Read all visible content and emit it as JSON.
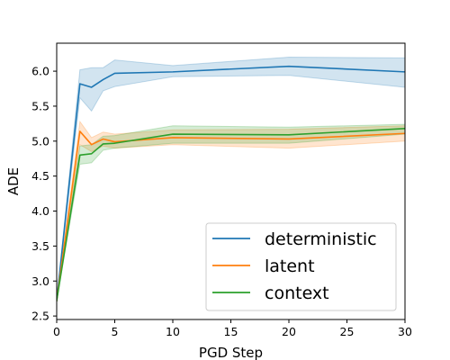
{
  "chart_data": {
    "type": "line",
    "title": "",
    "xlabel": "PGD Step",
    "ylabel": "ADE",
    "xlim": [
      0,
      30
    ],
    "ylim": [
      2.45,
      6.4
    ],
    "xticks": [
      0,
      5,
      10,
      15,
      20,
      25,
      30
    ],
    "yticks": [
      2.5,
      3.0,
      3.5,
      4.0,
      4.5,
      5.0,
      5.5,
      6.0
    ],
    "grid": false,
    "legend_position": "lower-right",
    "x": [
      0,
      2,
      3,
      4,
      5,
      10,
      20,
      30
    ],
    "series": [
      {
        "name": "deterministic",
        "color": "#1f77b4",
        "values": [
          2.72,
          5.82,
          5.77,
          5.88,
          5.97,
          5.99,
          6.07,
          5.99
        ],
        "lower": [
          2.72,
          5.62,
          5.43,
          5.72,
          5.78,
          5.92,
          5.94,
          5.77
        ],
        "upper": [
          2.72,
          6.02,
          6.05,
          6.05,
          6.16,
          6.08,
          6.2,
          6.19
        ]
      },
      {
        "name": "latent",
        "color": "#ff7f0e",
        "values": [
          2.72,
          5.14,
          4.95,
          5.03,
          4.99,
          5.05,
          5.03,
          5.11
        ],
        "lower": [
          2.72,
          4.95,
          4.85,
          4.93,
          4.9,
          4.95,
          4.9,
          5.0
        ],
        "upper": [
          2.72,
          5.28,
          5.05,
          5.13,
          5.1,
          5.16,
          5.17,
          5.22
        ]
      },
      {
        "name": "context",
        "color": "#2ca02c",
        "values": [
          2.72,
          4.8,
          4.82,
          4.96,
          4.97,
          5.1,
          5.09,
          5.18
        ],
        "lower": [
          2.72,
          4.67,
          4.69,
          4.87,
          4.9,
          4.97,
          4.97,
          5.1
        ],
        "upper": [
          2.72,
          4.93,
          4.95,
          5.07,
          5.08,
          5.22,
          5.2,
          5.24
        ]
      }
    ]
  }
}
